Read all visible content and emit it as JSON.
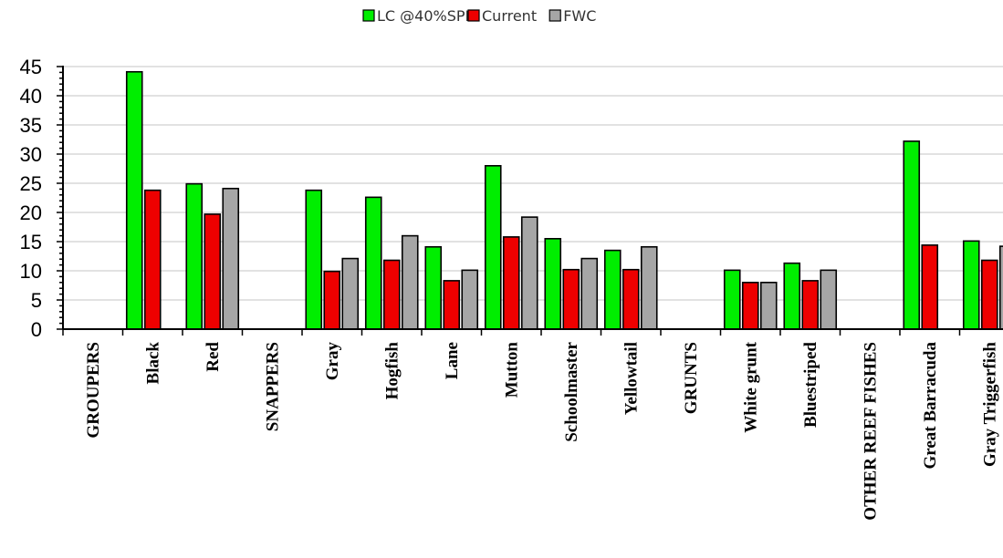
{
  "chart_data": {
    "type": "bar",
    "categories": [
      "GROUPERS",
      "Black",
      "Red",
      "SNAPPERS",
      "Gray",
      "Hogfish",
      "Lane",
      "Mutton",
      "Schoolmaster",
      "Yellowtail",
      "GRUNTS",
      "White grunt",
      "Bluestriped",
      "OTHER REEF FISHES",
      "Great Barracuda",
      "Gray Triggerfish"
    ],
    "series": [
      {
        "name": "LC @40%SPR",
        "color": "#00ee00",
        "values": [
          null,
          44.1,
          24.9,
          null,
          23.8,
          22.6,
          14.1,
          28.0,
          15.5,
          13.5,
          null,
          10.1,
          11.3,
          null,
          32.2,
          15.1
        ]
      },
      {
        "name": "Current",
        "color": "#ee0000",
        "values": [
          null,
          23.8,
          19.7,
          null,
          9.9,
          11.8,
          8.3,
          15.8,
          10.2,
          10.2,
          null,
          8.0,
          8.3,
          null,
          14.4,
          11.8
        ]
      },
      {
        "name": "FWC",
        "color": "#a6a6a6",
        "values": [
          null,
          null,
          24.1,
          null,
          12.1,
          16.0,
          10.1,
          19.2,
          12.1,
          14.1,
          null,
          8.0,
          10.1,
          null,
          null,
          14.2
        ]
      }
    ],
    "ylim": [
      0,
      45
    ],
    "yticks": [
      0,
      5,
      10,
      15,
      20,
      25,
      30,
      35,
      40,
      45
    ],
    "grid": true,
    "legend_position": "top-center"
  }
}
